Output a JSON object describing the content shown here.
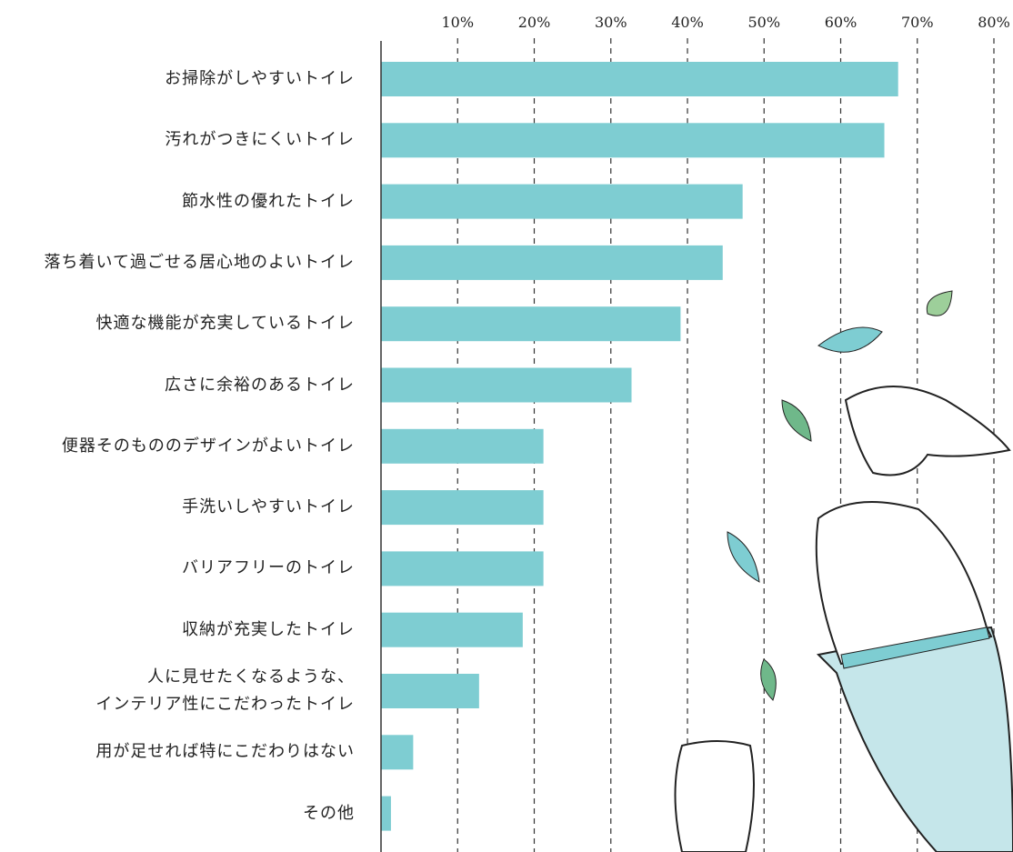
{
  "chart_data": {
    "type": "bar",
    "orientation": "horizontal",
    "categories": [
      "お掃除がしやすいトイレ",
      "汚れがつきにくいトイレ",
      "節水性の優れたトイレ",
      "落ち着いて過ごせる居心地のよいトイレ",
      "快適な機能が充実しているトイレ",
      "広さに余裕のあるトイレ",
      "便器そのもののデザインがよいトイレ",
      "手洗いしやすいトイレ",
      "バリアフリーのトイレ",
      "収納が充実したトイレ",
      "人に見せたくなるような、\nインテリア性にこだわったトイレ",
      "用が足せれば特にこだわりはない",
      "その他"
    ],
    "values": [
      67.5,
      65.7,
      47.2,
      44.6,
      39.1,
      32.7,
      21.2,
      21.2,
      21.2,
      18.5,
      12.8,
      4.2,
      1.3
    ],
    "color": "#7ecdd2",
    "xlim": [
      0,
      80
    ],
    "xticks": [
      {
        "value": 10,
        "label": "10%"
      },
      {
        "value": 20,
        "label": "20%"
      },
      {
        "value": 30,
        "label": "30%"
      },
      {
        "value": 40,
        "label": "40%"
      },
      {
        "value": 50,
        "label": "50%"
      },
      {
        "value": 60,
        "label": "60%"
      },
      {
        "value": 70,
        "label": "70%"
      },
      {
        "value": 80,
        "label": "80%"
      }
    ],
    "grid": true
  }
}
